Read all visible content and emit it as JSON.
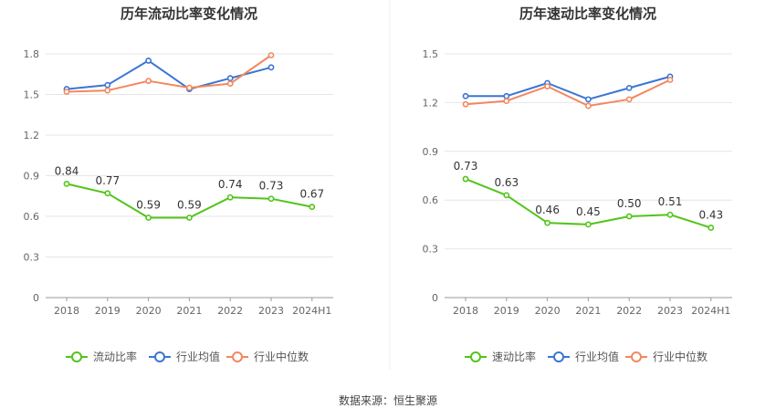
{
  "source_text": "数据来源：恒生聚源",
  "chart_data": [
    {
      "type": "line",
      "title": "历年流动比率变化情况",
      "categories": [
        "2018",
        "2019",
        "2020",
        "2021",
        "2022",
        "2023",
        "2024H1"
      ],
      "ylim": [
        0,
        1.8
      ],
      "yticks": [
        0,
        0.3,
        0.6,
        0.9,
        1.2,
        1.5,
        1.8
      ],
      "ytick_labels": [
        "0",
        "0.3",
        "0.6",
        "0.9",
        "1.2",
        "1.5",
        "1.8"
      ],
      "grid": true,
      "legend_position": "bottom",
      "series": [
        {
          "name": "流动比率",
          "color": "#52c41a",
          "labeled": true,
          "values": [
            0.84,
            0.77,
            0.59,
            0.59,
            0.74,
            0.73,
            0.67
          ],
          "labels": [
            "0.84",
            "0.77",
            "0.59",
            "0.59",
            "0.74",
            "0.73",
            "0.67"
          ]
        },
        {
          "name": "行业均值",
          "color": "#3a75d6",
          "labeled": false,
          "values": [
            1.54,
            1.57,
            1.75,
            1.54,
            1.62,
            1.7,
            null
          ]
        },
        {
          "name": "行业中位数",
          "color": "#f4875e",
          "labeled": false,
          "values": [
            1.52,
            1.53,
            1.6,
            1.55,
            1.58,
            1.79,
            null
          ]
        }
      ]
    },
    {
      "type": "line",
      "title": "历年速动比率变化情况",
      "categories": [
        "2018",
        "2019",
        "2020",
        "2021",
        "2022",
        "2023",
        "2024H1"
      ],
      "ylim": [
        0,
        1.5
      ],
      "yticks": [
        0,
        0.3,
        0.6,
        0.9,
        1.2,
        1.5
      ],
      "ytick_labels": [
        "0",
        "0.3",
        "0.6",
        "0.9",
        "1.2",
        "1.5"
      ],
      "grid": true,
      "legend_position": "bottom",
      "series": [
        {
          "name": "速动比率",
          "color": "#52c41a",
          "labeled": true,
          "values": [
            0.73,
            0.63,
            0.46,
            0.45,
            0.5,
            0.51,
            0.43
          ],
          "labels": [
            "0.73",
            "0.63",
            "0.46",
            "0.45",
            "0.50",
            "0.51",
            "0.43"
          ]
        },
        {
          "name": "行业均值",
          "color": "#3a75d6",
          "labeled": false,
          "values": [
            1.24,
            1.24,
            1.32,
            1.22,
            1.29,
            1.36,
            null
          ]
        },
        {
          "name": "行业中位数",
          "color": "#f4875e",
          "labeled": false,
          "values": [
            1.19,
            1.21,
            1.3,
            1.18,
            1.22,
            1.34,
            null
          ]
        }
      ]
    }
  ]
}
